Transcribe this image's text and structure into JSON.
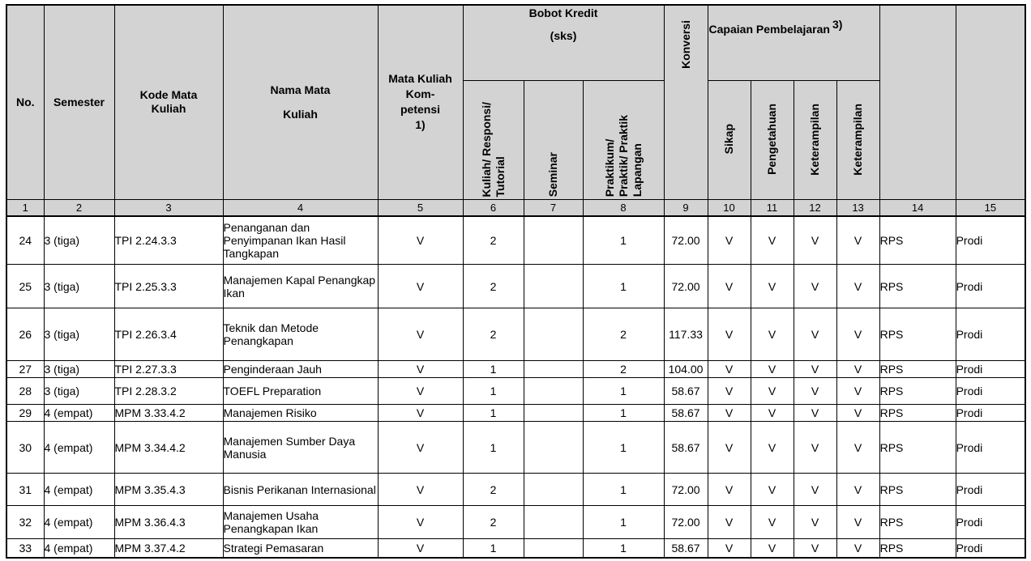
{
  "header": {
    "no": "No.",
    "semester": "Semester",
    "kode": "Kode Mata\nKuliah",
    "nama": "Nama Mata\nKuliah",
    "kompetensi": "Mata Kuliah\nKom-\npetensi\n1)",
    "bobot_group": "Bobot Kredit\n(sks)",
    "kuliah_responsi": "Kuliah/ Responsi/\nTutorial",
    "seminar": "Seminar",
    "praktikum": "Praktikum/\nPraktik/ Praktik\nLapangan",
    "konversi": "Konversi",
    "capaian_title": "Capaian Pembelajaran",
    "capaian_note": "3)",
    "sikap": "Sikap",
    "pengetahuan": "Pengetahuan",
    "keterampilan_1": "Keterampilan",
    "keterampilan_2": "Keterampilan",
    "column_numbers": [
      "1",
      "2",
      "3",
      "4",
      "5",
      "6",
      "7",
      "8",
      "9",
      "10",
      "11",
      "12",
      "13",
      "14",
      "15"
    ]
  },
  "rows": [
    [
      "24",
      "3 (tiga)",
      "TPI 2.24.3.3",
      "Penanganan dan Penyimpanan Ikan Hasil Tangkapan",
      "V",
      "2",
      "",
      "1",
      "72.00",
      "V",
      "V",
      "V",
      "V",
      "RPS",
      "Prodi"
    ],
    [
      "25",
      "3 (tiga)",
      "TPI 2.25.3.3",
      "Manajemen Kapal Penangkap Ikan",
      "V",
      "2",
      "",
      "1",
      "72.00",
      "V",
      "V",
      "V",
      "V",
      "RPS",
      "Prodi"
    ],
    [
      "26",
      "3 (tiga)",
      "TPI 2.26.3.4",
      "Teknik dan Metode Penangkapan",
      "V",
      "2",
      "",
      "2",
      "117.33",
      "V",
      "V",
      "V",
      "V",
      "RPS",
      "Prodi"
    ],
    [
      "27",
      "3 (tiga)",
      "TPI 2.27.3.3",
      "Penginderaan Jauh",
      "V",
      "1",
      "",
      "2",
      "104.00",
      "V",
      "V",
      "V",
      "V",
      "RPS",
      "Prodi"
    ],
    [
      "28",
      "3 (tiga)",
      "TPI 2.28.3.2",
      "TOEFL Preparation",
      "V",
      "1",
      "",
      "1",
      "58.67",
      "V",
      "V",
      "V",
      "V",
      "RPS",
      "Prodi"
    ],
    [
      "29",
      "4 (empat)",
      "MPM 3.33.4.2",
      "Manajemen Risiko",
      "V",
      "1",
      "",
      "1",
      "58.67",
      "V",
      "V",
      "V",
      "V",
      "RPS",
      "Prodi"
    ],
    [
      "30",
      "4 (empat)",
      "MPM 3.34.4.2",
      "Manajemen Sumber Daya Manusia",
      "V",
      "1",
      "",
      "1",
      "58.67",
      "V",
      "V",
      "V",
      "V",
      "RPS",
      "Prodi"
    ],
    [
      "31",
      "4 (empat)",
      "MPM 3.35.4.3",
      "Bisnis Perikanan Internasional",
      "V",
      "2",
      "",
      "1",
      "72.00",
      "V",
      "V",
      "V",
      "V",
      "RPS",
      "Prodi"
    ],
    [
      "32",
      "4 (empat)",
      "MPM 3.36.4.3",
      "Manajemen Usaha Penangkapan Ikan",
      "V",
      "2",
      "",
      "1",
      "72.00",
      "V",
      "V",
      "V",
      "V",
      "RPS",
      "Prodi"
    ],
    [
      "33",
      "4 (empat)",
      "MPM 3.37.4.2",
      "Strategi Pemasaran",
      "V",
      "1",
      "",
      "1",
      "58.67",
      "V",
      "V",
      "V",
      "V",
      "RPS",
      "Prodi"
    ]
  ],
  "colors": {
    "header_bg": "#d3d3d3",
    "border": "#000000",
    "text": "#000000"
  }
}
